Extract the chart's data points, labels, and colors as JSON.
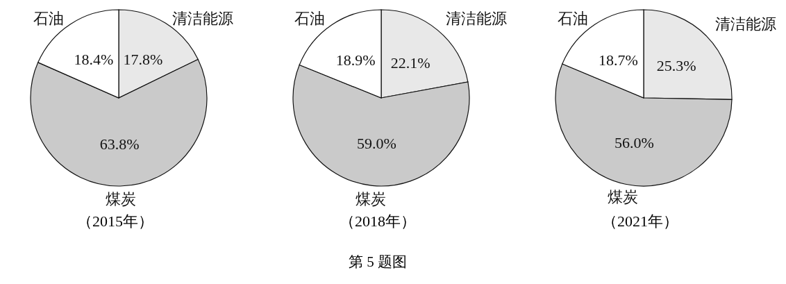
{
  "chart_data": [
    {
      "type": "pie",
      "title": "（2015年）",
      "categories": [
        "清洁能源",
        "煤炭",
        "石油"
      ],
      "values": [
        17.8,
        63.8,
        18.4
      ],
      "value_labels": [
        "17.8%",
        "63.8%",
        "18.4%"
      ],
      "colors": [
        "#e8e8e8",
        "#cacaca",
        "#ffffff"
      ],
      "legend": false
    },
    {
      "type": "pie",
      "title": "（2018年）",
      "categories": [
        "清洁能源",
        "煤炭",
        "石油"
      ],
      "values": [
        22.1,
        59.0,
        18.9
      ],
      "value_labels": [
        "22.1%",
        "59.0%",
        "18.9%"
      ],
      "colors": [
        "#e8e8e8",
        "#cacaca",
        "#ffffff"
      ],
      "legend": false,
      "annotations": [
        "第 5 题图"
      ]
    },
    {
      "type": "pie",
      "title": "（2021年）",
      "categories": [
        "清洁能源",
        "煤炭",
        "石油"
      ],
      "values": [
        25.3,
        56.0,
        18.7
      ],
      "value_labels": [
        "25.3%",
        "56.0%",
        "18.7%"
      ],
      "colors": [
        "#e8e8e8",
        "#cacaca",
        "#ffffff"
      ],
      "legend": false
    }
  ]
}
